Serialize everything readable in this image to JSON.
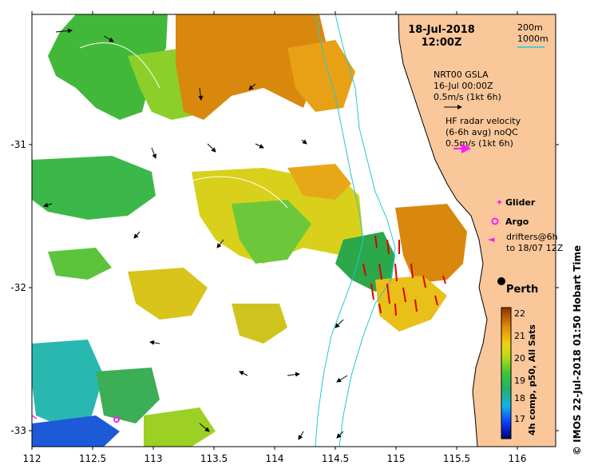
{
  "map": {
    "date": "18-Jul-2018",
    "time": "12:00Z",
    "bathy_legend": [
      "200m",
      "1000m"
    ],
    "gsla": {
      "title": "NRT00 GSLA",
      "date": "16-Jul 00:00Z",
      "scale": "0.5m/s (1kt 6h)"
    },
    "hf": {
      "line1": "HF radar velocity",
      "line2": "(6-6h avg) noQC",
      "scale": "0.5m/s (1kt 6h)"
    },
    "markers": {
      "glider": "Glider",
      "argo": "Argo",
      "drifters_line1": "drifters@6h",
      "drifters_line2": "to 18/07 12Z"
    },
    "city": "Perth",
    "colorbar": {
      "ticks": [
        "22",
        "21",
        "20",
        "19",
        "18",
        "17"
      ],
      "label": "4h comp, p50, All Sats",
      "min": 16.5,
      "max": 22.3
    },
    "credit": "© IMOS 22-Jul-2018 01:50 Hobart Time",
    "x_ticks": [
      "112",
      "112.5",
      "113",
      "113.5",
      "114",
      "114.5",
      "115",
      "115.5",
      "116"
    ],
    "y_ticks": [
      "-31",
      "-32",
      "-33"
    ],
    "colors": {
      "land": "#f9c79a",
      "isobath": "#22c8d6",
      "hf_arrow": "#e00000",
      "marker": "#ff1aff",
      "sst_warm": "#d4760a",
      "sst_cool": "#2db34a"
    }
  }
}
